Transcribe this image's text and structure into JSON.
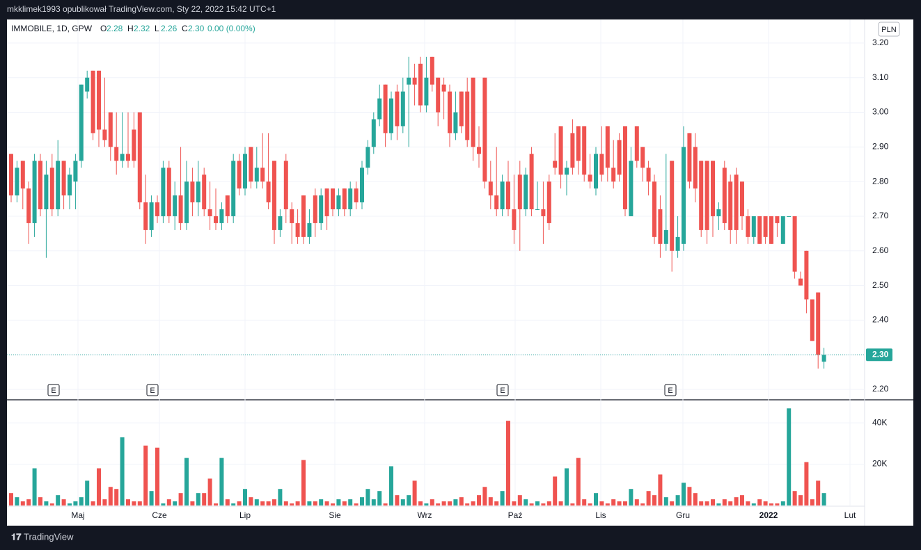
{
  "header": {
    "publisher": "mkklimek1993 opublikował TradingView.com, Sty 22, 2022 15:42 UTC+1",
    "brand": "TradingView"
  },
  "chart_data": {
    "type": "candlestick",
    "symbol": "IMMOBILE, 1D, GPW",
    "legend": [
      {
        "label": "O",
        "value": "2.28"
      },
      {
        "label": "H",
        "value": "2.32"
      },
      {
        "label": "L",
        "value": "2.26"
      },
      {
        "label": "C",
        "value": "2.30"
      }
    ],
    "change": "0.00 (0.00%)",
    "currency": "PLN",
    "last_price": "2.30",
    "up_color": "#26a69a",
    "down_color": "#ef5350",
    "candles": [
      [
        2.88,
        2.88,
        2.74,
        2.76
      ],
      [
        2.76,
        2.86,
        2.74,
        2.84
      ],
      [
        2.86,
        2.86,
        2.72,
        2.78
      ],
      [
        2.78,
        2.8,
        2.62,
        2.68
      ],
      [
        2.68,
        2.88,
        2.64,
        2.86
      ],
      [
        2.86,
        2.88,
        2.7,
        2.72
      ],
      [
        2.72,
        2.86,
        2.58,
        2.82
      ],
      [
        2.84,
        2.88,
        2.7,
        2.72
      ],
      [
        2.72,
        2.92,
        2.7,
        2.86
      ],
      [
        2.86,
        2.86,
        2.72,
        2.76
      ],
      [
        2.76,
        2.84,
        2.72,
        2.82
      ],
      [
        2.8,
        2.88,
        2.72,
        2.86
      ],
      [
        2.86,
        3.08,
        2.84,
        3.08
      ],
      [
        3.06,
        3.12,
        3.04,
        3.1
      ],
      [
        3.12,
        3.12,
        2.92,
        2.94
      ],
      [
        3.12,
        3.12,
        2.9,
        2.95
      ],
      [
        2.95,
        3.1,
        2.9,
        2.92
      ],
      [
        3.0,
        3.0,
        2.86,
        2.9
      ],
      [
        2.9,
        3.0,
        2.82,
        2.86
      ],
      [
        2.86,
        3.0,
        2.84,
        2.88
      ],
      [
        2.88,
        3.0,
        2.84,
        2.86
      ],
      [
        2.95,
        3.0,
        2.84,
        2.86
      ],
      [
        3.0,
        3.0,
        2.72,
        2.74
      ],
      [
        2.74,
        2.82,
        2.62,
        2.66
      ],
      [
        2.66,
        2.76,
        2.64,
        2.74
      ],
      [
        2.74,
        2.76,
        2.68,
        2.7
      ],
      [
        2.7,
        2.86,
        2.68,
        2.84
      ],
      [
        2.84,
        2.86,
        2.68,
        2.7
      ],
      [
        2.7,
        2.8,
        2.66,
        2.76
      ],
      [
        2.76,
        2.9,
        2.66,
        2.68
      ],
      [
        2.68,
        2.86,
        2.66,
        2.8
      ],
      [
        2.8,
        2.84,
        2.7,
        2.74
      ],
      [
        2.74,
        2.86,
        2.7,
        2.8
      ],
      [
        2.82,
        2.84,
        2.7,
        2.72
      ],
      [
        2.72,
        2.8,
        2.66,
        2.7
      ],
      [
        2.7,
        2.78,
        2.66,
        2.68
      ],
      [
        2.68,
        2.74,
        2.66,
        2.72
      ],
      [
        2.76,
        2.76,
        2.68,
        2.7
      ],
      [
        2.7,
        2.88,
        2.68,
        2.86
      ],
      [
        2.86,
        2.88,
        2.76,
        2.78
      ],
      [
        2.78,
        2.9,
        2.76,
        2.88
      ],
      [
        2.9,
        2.9,
        2.78,
        2.8
      ],
      [
        2.8,
        2.9,
        2.78,
        2.84
      ],
      [
        2.84,
        2.94,
        2.78,
        2.8
      ],
      [
        2.8,
        2.94,
        2.72,
        2.74
      ],
      [
        2.86,
        2.86,
        2.62,
        2.66
      ],
      [
        2.66,
        2.72,
        2.64,
        2.7
      ],
      [
        2.86,
        2.88,
        2.68,
        2.72
      ],
      [
        2.72,
        2.74,
        2.62,
        2.68
      ],
      [
        2.68,
        2.72,
        2.62,
        2.64
      ],
      [
        2.76,
        2.76,
        2.62,
        2.64
      ],
      [
        2.64,
        2.72,
        2.62,
        2.68
      ],
      [
        2.76,
        2.78,
        2.64,
        2.68
      ],
      [
        2.68,
        2.78,
        2.66,
        2.76
      ],
      [
        2.78,
        2.78,
        2.66,
        2.7
      ],
      [
        2.78,
        2.78,
        2.7,
        2.72
      ],
      [
        2.72,
        2.78,
        2.7,
        2.76
      ],
      [
        2.78,
        2.78,
        2.7,
        2.72
      ],
      [
        2.72,
        2.8,
        2.7,
        2.78
      ],
      [
        2.78,
        2.8,
        2.72,
        2.74
      ],
      [
        2.74,
        2.86,
        2.72,
        2.84
      ],
      [
        2.84,
        2.92,
        2.82,
        2.9
      ],
      [
        2.9,
        3.0,
        2.88,
        2.98
      ],
      [
        2.98,
        3.08,
        2.96,
        3.04
      ],
      [
        3.08,
        3.08,
        2.9,
        2.94
      ],
      [
        2.94,
        3.06,
        2.92,
        3.04
      ],
      [
        3.06,
        3.08,
        2.92,
        2.96
      ],
      [
        2.96,
        3.1,
        2.94,
        3.06
      ],
      [
        3.08,
        3.16,
        2.9,
        3.1
      ],
      [
        3.1,
        3.14,
        3.02,
        3.08
      ],
      [
        3.14,
        3.16,
        3.0,
        3.02
      ],
      [
        3.02,
        3.16,
        3.0,
        3.1
      ],
      [
        3.16,
        3.16,
        3.06,
        3.08
      ],
      [
        3.1,
        3.1,
        2.96,
        3.0
      ],
      [
        3.08,
        3.1,
        2.98,
        3.06
      ],
      [
        3.06,
        3.08,
        2.9,
        2.94
      ],
      [
        2.94,
        3.06,
        2.92,
        3.0
      ],
      [
        3.06,
        3.06,
        2.94,
        2.96
      ],
      [
        3.06,
        3.1,
        2.9,
        2.92
      ],
      [
        3.1,
        3.1,
        2.86,
        2.9
      ],
      [
        2.9,
        2.96,
        2.84,
        2.88
      ],
      [
        3.1,
        3.1,
        2.78,
        2.8
      ],
      [
        2.8,
        2.86,
        2.72,
        2.76
      ],
      [
        2.76,
        2.9,
        2.7,
        2.72
      ],
      [
        2.72,
        2.82,
        2.7,
        2.8
      ],
      [
        2.8,
        2.86,
        2.7,
        2.72
      ],
      [
        2.72,
        2.82,
        2.62,
        2.66
      ],
      [
        2.82,
        2.86,
        2.6,
        2.72
      ],
      [
        2.72,
        2.84,
        2.7,
        2.82
      ],
      [
        2.88,
        2.9,
        2.7,
        2.72
      ],
      [
        2.72,
        2.8,
        2.72,
        2.72
      ],
      [
        2.72,
        2.8,
        2.62,
        2.7
      ],
      [
        2.8,
        2.82,
        2.66,
        2.68
      ],
      [
        2.86,
        2.94,
        2.82,
        2.84
      ],
      [
        2.96,
        2.96,
        2.78,
        2.82
      ],
      [
        2.82,
        2.86,
        2.76,
        2.84
      ],
      [
        2.94,
        2.98,
        2.82,
        2.84
      ],
      [
        2.96,
        2.96,
        2.82,
        2.86
      ],
      [
        2.96,
        2.96,
        2.8,
        2.82
      ],
      [
        2.82,
        2.88,
        2.78,
        2.8
      ],
      [
        2.78,
        2.9,
        2.76,
        2.88
      ],
      [
        2.88,
        2.96,
        2.8,
        2.82
      ],
      [
        2.96,
        2.96,
        2.8,
        2.84
      ],
      [
        2.84,
        2.92,
        2.78,
        2.8
      ],
      [
        2.92,
        2.94,
        2.8,
        2.82
      ],
      [
        2.96,
        2.96,
        2.7,
        2.72
      ],
      [
        2.7,
        2.9,
        2.7,
        2.86
      ],
      [
        2.96,
        2.96,
        2.84,
        2.86
      ],
      [
        2.9,
        2.9,
        2.8,
        2.84
      ],
      [
        2.84,
        2.86,
        2.76,
        2.8
      ],
      [
        2.8,
        2.82,
        2.62,
        2.64
      ],
      [
        2.72,
        2.76,
        2.58,
        2.62
      ],
      [
        2.62,
        2.88,
        2.6,
        2.66
      ],
      [
        2.86,
        2.86,
        2.54,
        2.6
      ],
      [
        2.6,
        2.7,
        2.58,
        2.64
      ],
      [
        2.62,
        2.96,
        2.6,
        2.9
      ],
      [
        2.94,
        2.94,
        2.78,
        2.8
      ],
      [
        2.9,
        2.94,
        2.74,
        2.78
      ],
      [
        2.86,
        2.86,
        2.64,
        2.66
      ],
      [
        2.86,
        2.86,
        2.62,
        2.66
      ],
      [
        2.86,
        2.86,
        2.64,
        2.7
      ],
      [
        2.7,
        2.74,
        2.66,
        2.72
      ],
      [
        2.84,
        2.86,
        2.66,
        2.68
      ],
      [
        2.8,
        2.82,
        2.62,
        2.66
      ],
      [
        2.82,
        2.84,
        2.62,
        2.66
      ],
      [
        2.8,
        2.8,
        2.66,
        2.7
      ],
      [
        2.7,
        2.72,
        2.62,
        2.64
      ],
      [
        2.64,
        2.7,
        2.62,
        2.7
      ],
      [
        2.7,
        2.7,
        2.62,
        2.62
      ],
      [
        2.7,
        2.7,
        2.62,
        2.64
      ],
      [
        2.7,
        2.7,
        2.62,
        2.62
      ],
      [
        2.7,
        2.7,
        2.64,
        2.68
      ],
      [
        2.62,
        2.7,
        2.62,
        2.7
      ],
      [
        2.7,
        2.7,
        2.7,
        2.7
      ],
      [
        2.7,
        2.7,
        2.52,
        2.54
      ],
      [
        2.52,
        2.54,
        2.5,
        2.5
      ],
      [
        2.6,
        2.6,
        2.42,
        2.46
      ],
      [
        2.46,
        2.46,
        2.34,
        2.34
      ],
      [
        2.48,
        2.48,
        2.26,
        2.3
      ],
      [
        2.28,
        2.32,
        2.26,
        2.3
      ]
    ],
    "volume": [
      6000,
      4000,
      2000,
      3000,
      18000,
      4000,
      2000,
      1000,
      5000,
      3000,
      1000,
      2000,
      4000,
      12000,
      2000,
      18000,
      3000,
      9000,
      8000,
      33000,
      3000,
      2000,
      2000,
      29000,
      7000,
      28000,
      1000,
      3000,
      2000,
      6000,
      23000,
      2000,
      6000,
      6000,
      13000,
      1000,
      23000,
      3000,
      1000,
      2000,
      8000,
      4000,
      3000,
      2000,
      2000,
      3000,
      8000,
      2000,
      1000,
      2000,
      22000,
      2000,
      2000,
      3000,
      2000,
      1000,
      3000,
      2000,
      3000,
      1000,
      4000,
      8000,
      3000,
      7000,
      1000,
      19000,
      5000,
      3000,
      5000,
      12000,
      2000,
      1000,
      3000,
      1000,
      2000,
      2000,
      3000,
      4000,
      1000,
      2000,
      5000,
      9000,
      4000,
      2000,
      7000,
      41000,
      2000,
      5000,
      3000,
      1000,
      2000,
      1000,
      2000,
      14000,
      2000,
      18000,
      1000,
      23000,
      3000,
      1000,
      6000,
      2000,
      1000,
      3000,
      2000,
      2000,
      8000,
      3000,
      1000,
      7000,
      5000,
      15000,
      4000,
      2000,
      5000,
      11000,
      9000,
      6000,
      2000,
      2000,
      3000,
      1000,
      3000,
      2000,
      4000,
      5000,
      2000,
      1000,
      3000,
      2000,
      1000,
      1000,
      2000,
      47000,
      7000,
      5000,
      21000,
      3000,
      12000,
      6000
    ],
    "ylim": [
      2.172,
      3.268
    ],
    "yticks": [
      {
        "value": 2.2,
        "label": "2.20"
      },
      {
        "value": 2.3,
        "label": "2.30"
      },
      {
        "value": 2.4,
        "label": "2.40"
      },
      {
        "value": 2.5,
        "label": "2.50"
      },
      {
        "value": 2.6,
        "label": "2.60"
      },
      {
        "value": 2.7,
        "label": "2.70"
      },
      {
        "value": 2.8,
        "label": "2.80"
      },
      {
        "value": 2.9,
        "label": "2.90"
      },
      {
        "value": 3.0,
        "label": "3.00"
      },
      {
        "value": 3.1,
        "label": "3.10"
      },
      {
        "value": 3.2,
        "label": "3.20"
      }
    ],
    "volume_ylim": [
      0,
      50800
    ],
    "volume_yticks": [
      {
        "value": 20000,
        "label": "20K"
      },
      {
        "value": 40000,
        "label": "40K"
      }
    ],
    "time_labels": [
      "Maj",
      "Cze",
      "Lip",
      "Sie",
      "Wrz",
      "Paź",
      "Lis",
      "Gru",
      "2022",
      "Lut"
    ],
    "events": [
      "E",
      "E",
      "E",
      "E"
    ],
    "grid": true
  }
}
